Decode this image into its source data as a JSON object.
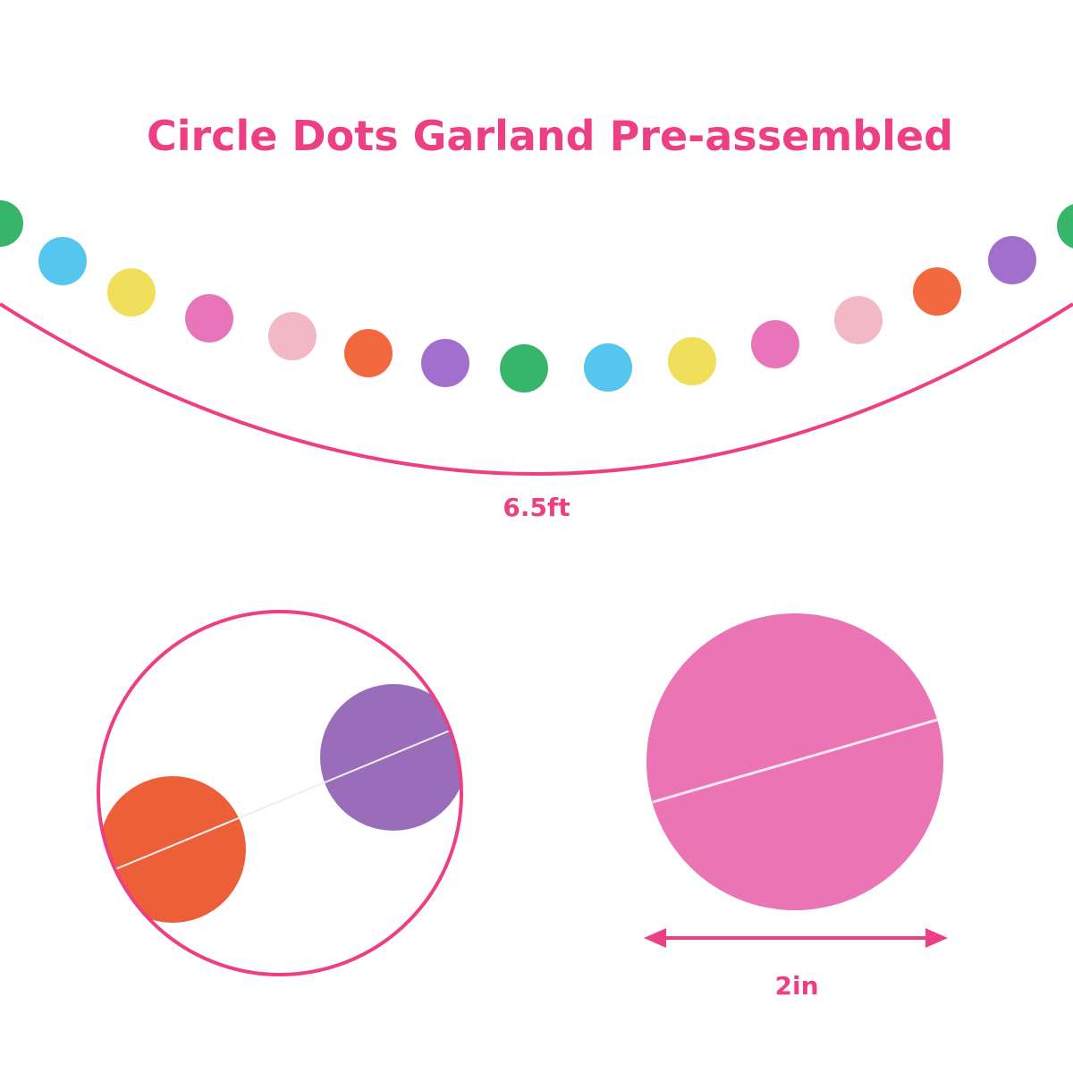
{
  "title": "Circle Dots Garland Pre-assembled",
  "length_label": "6.5ft",
  "size_label": "2in"
}
